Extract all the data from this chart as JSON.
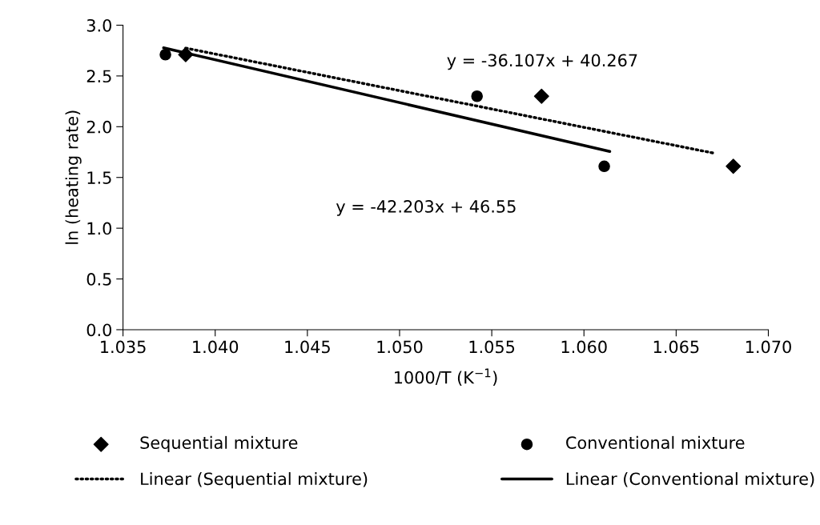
{
  "chart_data": {
    "type": "scatter",
    "xlabel": "1000/T (K$^{−1}$)",
    "ylabel": "ln (heating rate)",
    "xlim": [
      1.035,
      1.07
    ],
    "xticks": [
      {
        "value": 1.035,
        "label": "1.035"
      },
      {
        "value": 1.04,
        "label": "1.040"
      },
      {
        "value": 1.045,
        "label": "1.045"
      },
      {
        "value": 1.05,
        "label": "1.050"
      },
      {
        "value": 1.055,
        "label": "1.055"
      },
      {
        "value": 1.06,
        "label": "1.060"
      },
      {
        "value": 1.065,
        "label": "1.065"
      },
      {
        "value": 1.07,
        "label": "1.070"
      }
    ],
    "ylim": [
      0,
      3
    ],
    "yticks": [
      {
        "value": 0,
        "label": "0.0"
      },
      {
        "value": 0.5,
        "label": "0.5"
      },
      {
        "value": 1,
        "label": "1.0"
      },
      {
        "value": 1.5,
        "label": "1.5"
      },
      {
        "value": 2,
        "label": "2.0"
      },
      {
        "value": 2.5,
        "label": "2.5"
      },
      {
        "value": 3,
        "label": "3.0"
      }
    ],
    "grid": false,
    "legend": "bottom",
    "series": [
      {
        "name": "Sequential mixture",
        "marker": "diamond",
        "color": "#000000",
        "x": [
          1.0384,
          1.0577,
          1.0681
        ],
        "values": [
          2.71,
          2.3,
          1.61
        ]
      },
      {
        "name": "Conventional mixture",
        "marker": "circle",
        "color": "#000000",
        "x": [
          1.0373,
          1.0542,
          1.0611
        ],
        "values": [
          2.71,
          2.3,
          1.61
        ]
      },
      {
        "name": "Linear (Sequential mixture)",
        "type": "line",
        "line_style": "dotted",
        "marker": "none",
        "color": "#000000",
        "x": [
          1.0384,
          1.067
        ],
        "values": [
          2.774,
          1.741
        ]
      },
      {
        "name": "Linear (Conventional mixture)",
        "type": "line",
        "line_style": "solid",
        "marker": "none",
        "color": "#000000",
        "x": [
          1.0372,
          1.0614
        ],
        "values": [
          2.777,
          1.756
        ]
      }
    ],
    "annotations": [
      "y = -36.107x + 40.267",
      "y = -42.203x + 46.55"
    ]
  }
}
